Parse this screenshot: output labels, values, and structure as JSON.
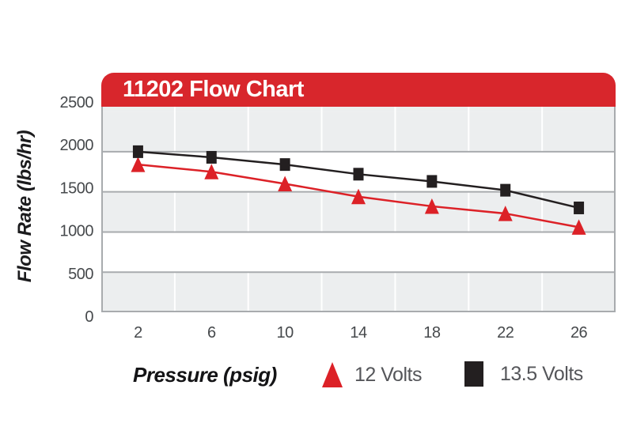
{
  "header": {
    "title": "11202 Flow Chart",
    "bar_color": "#d8262c",
    "title_color": "#ffffff"
  },
  "chart_data": {
    "type": "line",
    "title": "11202 Flow Chart",
    "xlabel": "Pressure (psig)",
    "ylabel": "Flow Rate (lbs/hr)",
    "x": [
      2,
      6,
      10,
      14,
      18,
      22,
      26
    ],
    "series": [
      {
        "name": "12 Volts",
        "marker": "triangle",
        "color": "#dc2127",
        "values": [
          1840,
          1750,
          1600,
          1440,
          1320,
          1230,
          1060
        ]
      },
      {
        "name": "13.5 Volts",
        "marker": "square",
        "color": "#231f20",
        "values": [
          2000,
          1930,
          1840,
          1720,
          1630,
          1520,
          1300
        ]
      }
    ],
    "ylim": [
      0,
      2560
    ],
    "yticks": [
      0,
      500,
      1000,
      1500,
      2000,
      2500
    ],
    "grid": {
      "band_colors": [
        "#eceeef",
        "#ffffff"
      ],
      "h_gridline_color": "#a8abae",
      "v_gridline_color": "#ffffff"
    },
    "tick_label_color": "#46494c",
    "legend_position": "bottom"
  },
  "legend": {
    "items": [
      {
        "label": "12 Volts"
      },
      {
        "label": "13.5 Volts"
      }
    ]
  }
}
